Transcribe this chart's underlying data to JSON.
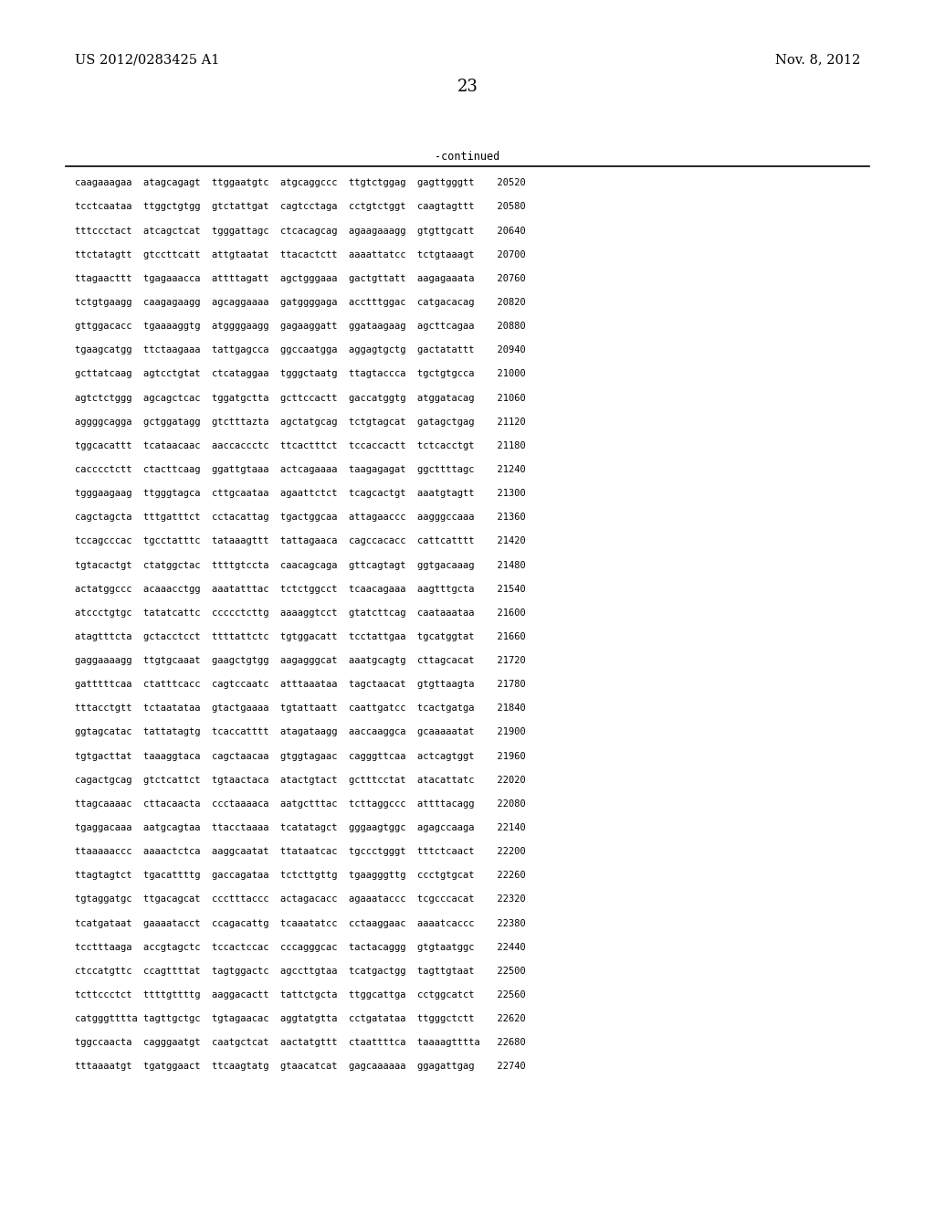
{
  "patent_left": "US 2012/0283425 A1",
  "patent_right": "Nov. 8, 2012",
  "page_number": "23",
  "continued_label": "-continued",
  "background_color": "#ffffff",
  "text_color": "#000000",
  "font_size_header": 10.5,
  "font_size_body": 8.5,
  "font_size_page": 13,
  "lines": [
    "caagaaagaa  atagcagagt  ttggaatgtc  atgcaggccc  ttgtctggag  gagttgggtt    20520",
    "tcctcaataa  ttggctgtgg  gtctattgat  cagtcctaga  cctgtctggt  caagtagttt    20580",
    "tttccctact  atcagctcat  tgggattagc  ctcacagcag  agaagaaagg  gtgttgcatt    20640",
    "ttctatagtt  gtccttcatt  attgtaatat  ttacactctt  aaaattatcc  tctgtaaagt    20700",
    "ttagaacttt  tgagaaacca  attttagatt  agctgggaaa  gactgttatt  aagagaaata    20760",
    "tctgtgaagg  caagagaagg  agcaggaaaa  gatggggaga  acctttggac  catgacacag    20820",
    "gttggacacc  tgaaaaggtg  atggggaagg  gagaaggatt  ggataagaag  agcttcagaa    20880",
    "tgaagcatgg  ttctaagaaa  tattgagcca  ggccaatgga  aggagtgctg  gactatattt    20940",
    "gcttatcaag  agtcctgtat  ctcataggaa  tgggctaatg  ttagtaccca  tgctgtgcca    21000",
    "agtctctggg  agcagctcac  tggatgctta  gcttccactt  gaccatggtg  atggatacag    21060",
    "aggggcagga  gctggatagg  gtctttazta  agctatgcag  tctgtagcat  gatagctgag    21120",
    "tggcacattt  tcataacaac  aaccaccctc  ttcactttct  tccaccactt  tctcacctgt    21180",
    "cacccctctt  ctacttcaag  ggattgtaaa  actcagaaaa  taagagagat  ggcttttagc    21240",
    "tgggaagaag  ttgggtagca  cttgcaataa  agaattctct  tcagcactgt  aaatgtagtt    21300",
    "cagctagcta  tttgatttct  cctacattag  tgactggcaa  attagaaccc  aagggccaaa    21360",
    "tccagcccac  tgcctatttc  tataaagttt  tattagaaca  cagccacacc  cattcatttt    21420",
    "tgtacactgt  ctatggctac  ttttgtccta  caacagcaga  gttcagtagt  ggtgacaaag    21480",
    "actatggccc  acaaacctgg  aaatatttac  tctctggcct  tcaacagaaa  aagtttgcta    21540",
    "atccctgtgc  tatatcattc  ccccctcttg  aaaaggtcct  gtatcttcag  caataaataa    21600",
    "atagtttcta  gctacctcct  ttttattctc  tgtggacatt  tcctattgaa  tgcatggtat    21660",
    "gaggaaaagg  ttgtgcaaat  gaagctgtgg  aagagggcat  aaatgcagtg  cttagcacat    21720",
    "gatttttcaa  ctatttcacc  cagtccaatc  atttaaataa  tagctaacat  gtgttaagta    21780",
    "tttacctgtt  tctaatataa  gtactgaaaa  tgtattaatt  caattgatcc  tcactgatga    21840",
    "ggtagcatac  tattatagtg  tcaccatttt  atagataagg  aaccaaggca  gcaaaaatat    21900",
    "tgtgacttat  taaaggtaca  cagctaacaa  gtggtagaac  cagggttcaa  actcagtggt    21960",
    "cagactgcag  gtctcattct  tgtaactaca  atactgtact  gctttcctat  atacattatc    22020",
    "ttagcaaaac  cttacaacta  ccctaaaaca  aatgctttac  tcttaggccc  attttacagg    22080",
    "tgaggacaaa  aatgcagtaa  ttacctaaaa  tcatatagct  gggaagtggc  agagccaaga    22140",
    "ttaaaaaccc  aaaactctca  aaggcaatat  ttataatcac  tgccctgggt  tttctcaact    22200",
    "ttagtagtct  tgacattttg  gaccagataa  tctcttgttg  tgaagggttg  ccctgtgcat    22260",
    "tgtaggatgc  ttgacagcat  ccctttaccc  actagacacc  agaaataccc  tcgcccacat    22320",
    "tcatgataat  gaaaatacct  ccagacattg  tcaaatatcc  cctaaggaac  aaaatcaccc    22380",
    "tcctttaaga  accgtagctc  tccactccac  cccagggcac  tactacaggg  gtgtaatggc    22440",
    "ctccatgttc  ccagttttat  tagtggactc  agccttgtaa  tcatgactgg  tagttgtaat    22500",
    "tcttccctct  ttttgttttg  aaggacactt  tattctgcta  ttggcattga  cctggcatct    22560",
    "catgggtttta tagttgctgc  tgtagaacac  aggtatgtta  cctgatataa  ttgggctctt    22620",
    "tggccaacta  cagggaatgt  caatgctcat  aactatgttt  ctaattttca  taaaagtttta   22680",
    "tttaaaatgt  tgatggaact  ttcaagtatg  gtaacatcat  gagcaaaaaa  ggagattgag    22740"
  ]
}
